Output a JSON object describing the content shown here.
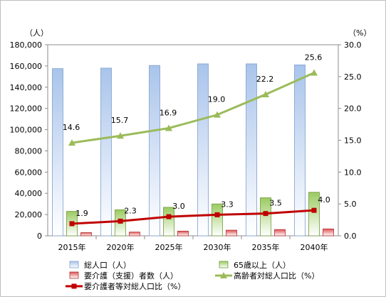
{
  "chart_data": {
    "type": "bar",
    "categories": [
      "2015年",
      "2020年",
      "2025年",
      "2030年",
      "2035年",
      "2040年"
    ],
    "y_left_unit": "（人）",
    "y_right_unit": "（%）",
    "y_left_ticks": [
      "0",
      "20,000",
      "40,000",
      "60,000",
      "80,000",
      "100,000",
      "120,000",
      "140,000",
      "160,000",
      "180,000"
    ],
    "y_right_ticks": [
      "0.0",
      "5.0",
      "10.0",
      "15.0",
      "20.0",
      "25.0",
      "30.0"
    ],
    "ylim_left": [
      0,
      180000
    ],
    "ylim_right": [
      0,
      30
    ],
    "grid": false,
    "legend_position": "bottom",
    "series": [
      {
        "name": "総人口（人）",
        "type": "bar",
        "axis": "left",
        "color": "#a9c4eb",
        "values": [
          157500,
          158000,
          160500,
          162000,
          162000,
          161000
        ]
      },
      {
        "name": "65歳以上（人）",
        "type": "bar",
        "axis": "left",
        "color": "#9bcb62",
        "values": [
          23000,
          24500,
          26800,
          30000,
          35800,
          41000
        ]
      },
      {
        "name": "要介護（支援）者数（人）",
        "type": "bar",
        "axis": "left",
        "color": "#e05555",
        "values": [
          3000,
          3500,
          4400,
          5300,
          5900,
          6500
        ]
      },
      {
        "name": "高齢者対総人口比（%）",
        "type": "line",
        "axis": "right",
        "color": "#9bbb59",
        "marker": "triangle",
        "values": [
          14.6,
          15.7,
          16.9,
          19.0,
          22.2,
          25.6
        ],
        "labels": [
          "14.6",
          "15.7",
          "16.9",
          "19.0",
          "22.2",
          "25.6"
        ]
      },
      {
        "name": "要介護者等対総人口比（%）",
        "type": "line",
        "axis": "right",
        "color": "#c00000",
        "marker": "square",
        "values": [
          1.9,
          2.3,
          3.0,
          3.3,
          3.5,
          4.0
        ],
        "labels": [
          "1.9",
          "2.3",
          "3.0",
          "3.3",
          "3.5",
          "4.0"
        ]
      }
    ]
  }
}
